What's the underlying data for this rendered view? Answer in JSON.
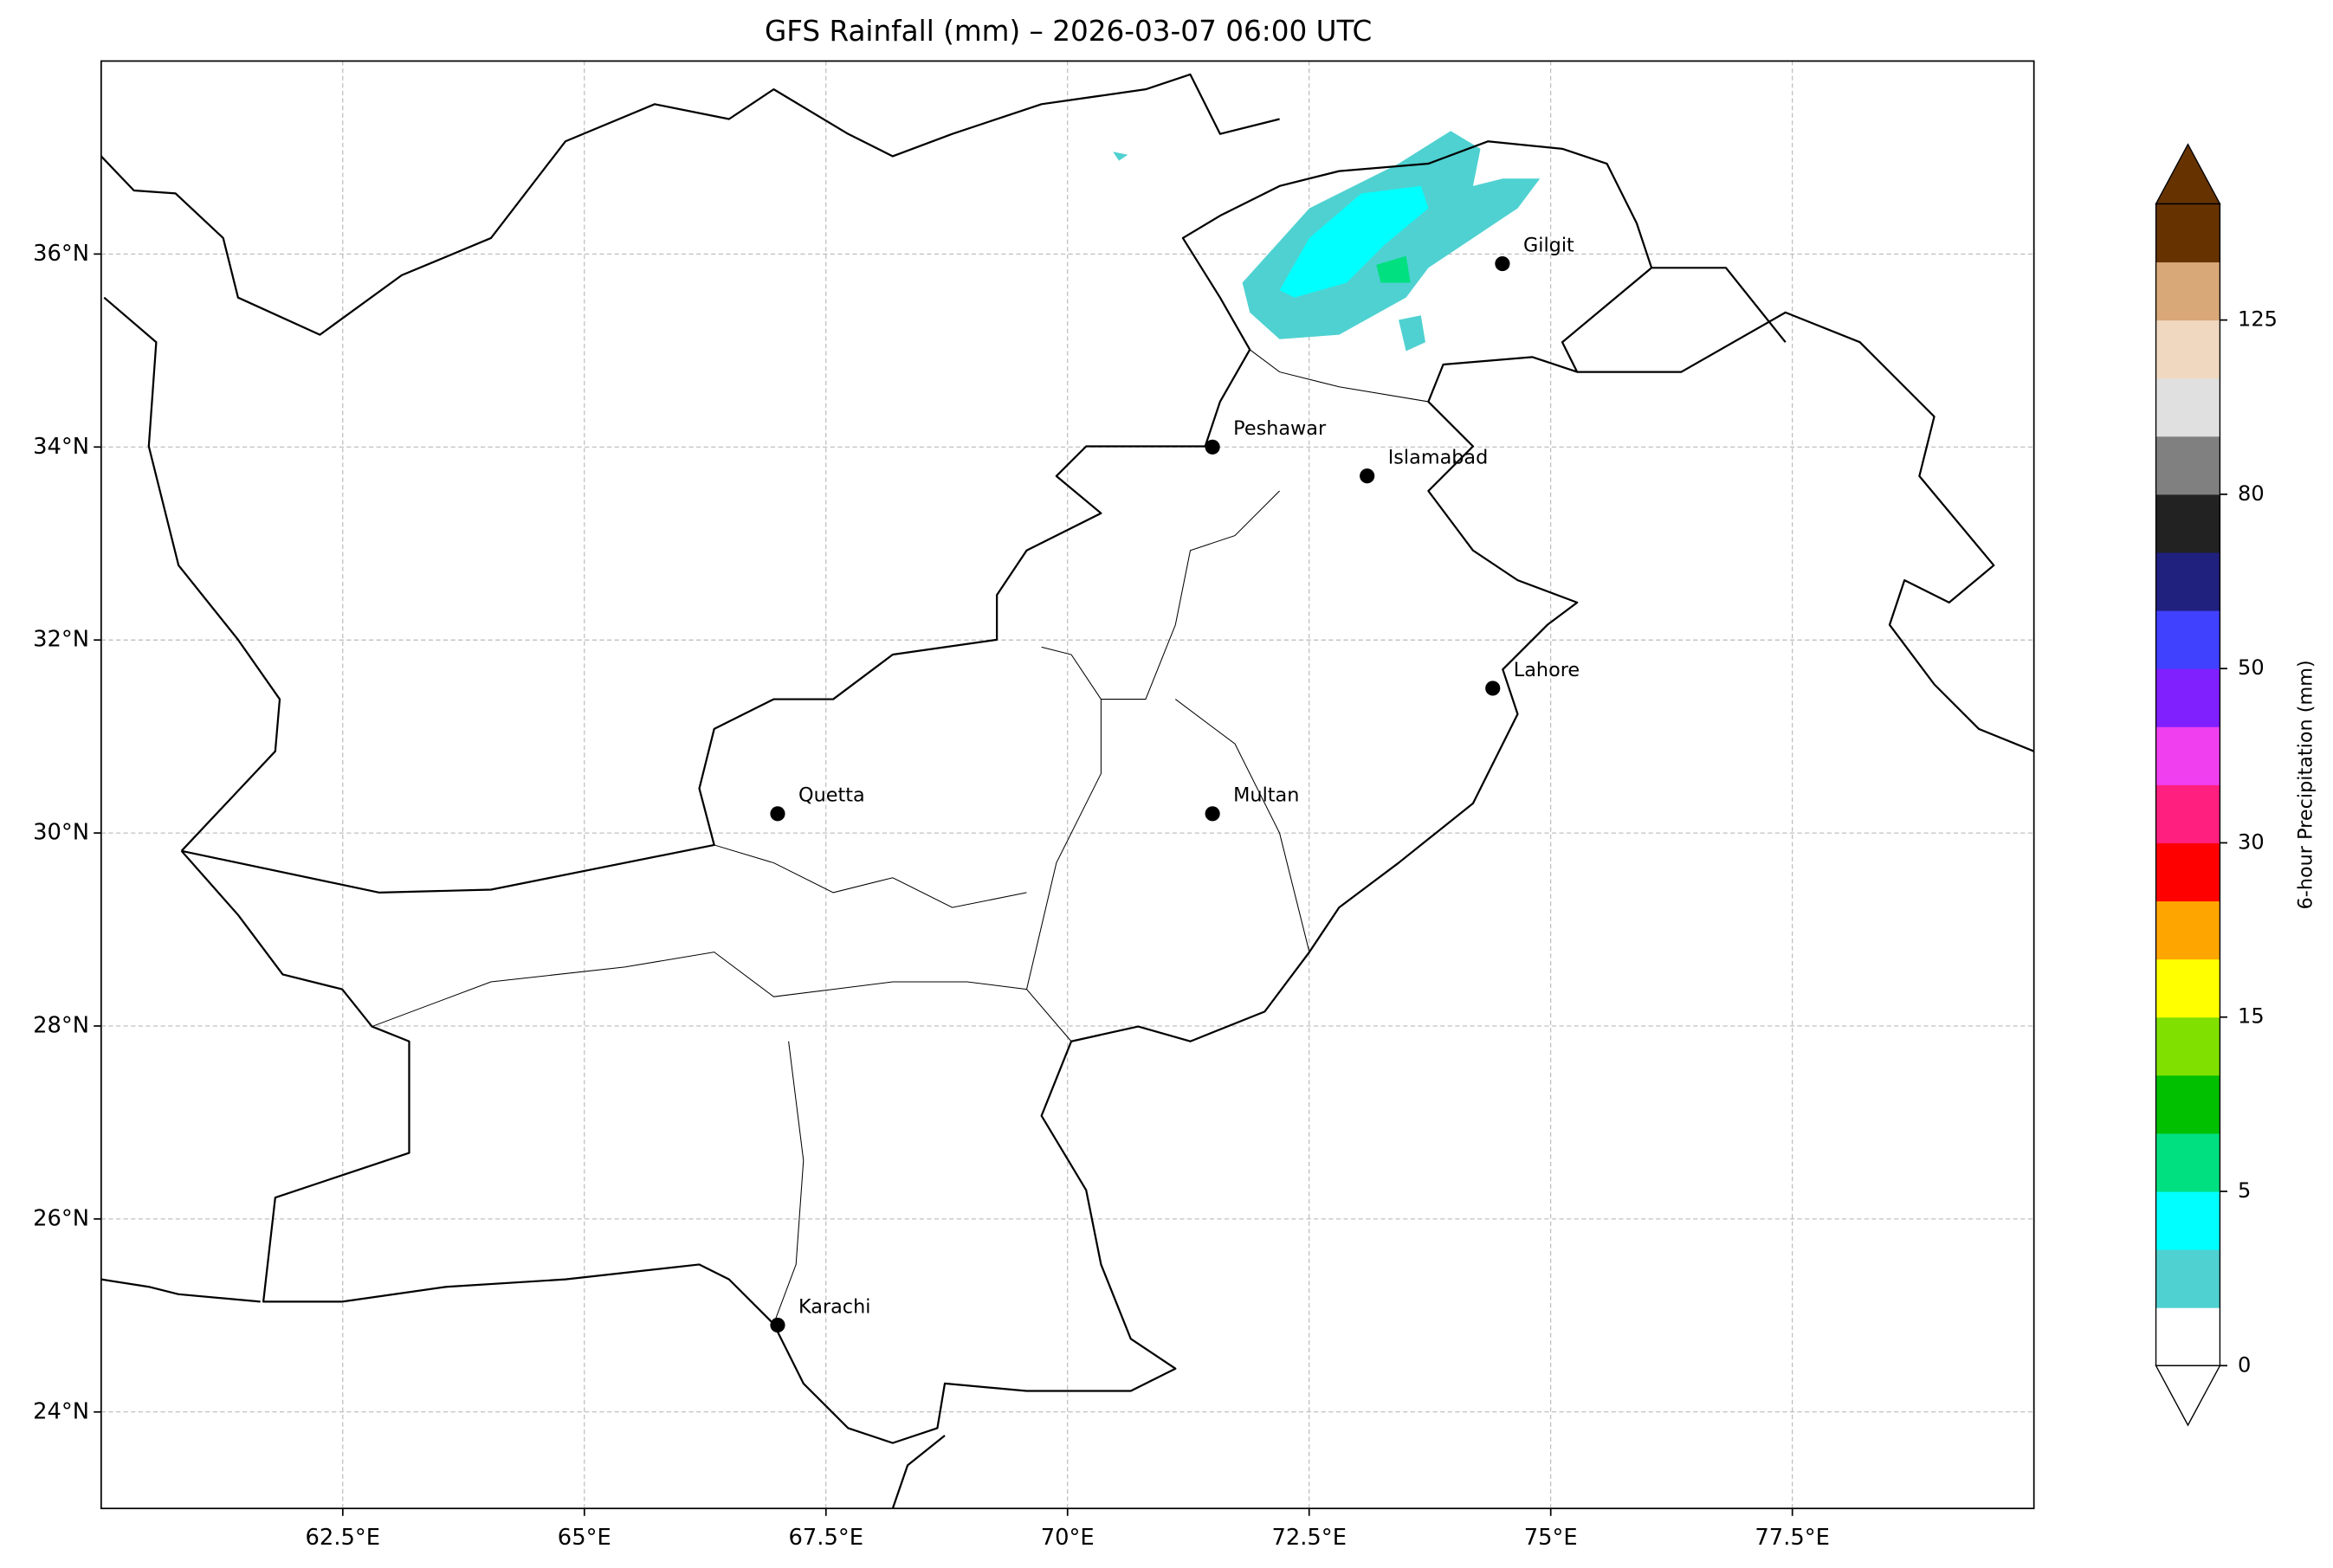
{
  "chart_data": {
    "type": "map",
    "title": "GFS Rainfall (mm) – 2026-03-07 06:00 UTC",
    "xlim": [
      60,
      80
    ],
    "ylim": [
      23,
      38
    ],
    "xticks": [
      {
        "value": 62.5,
        "label": "62.5°E"
      },
      {
        "value": 65,
        "label": "65°E"
      },
      {
        "value": 67.5,
        "label": "67.5°E"
      },
      {
        "value": 70,
        "label": "70°E"
      },
      {
        "value": 72.5,
        "label": "72.5°E"
      },
      {
        "value": 75,
        "label": "75°E"
      },
      {
        "value": 77.5,
        "label": "77.5°E"
      }
    ],
    "yticks": [
      {
        "value": 24,
        "label": "24°N"
      },
      {
        "value": 26,
        "label": "26°N"
      },
      {
        "value": 28,
        "label": "28°N"
      },
      {
        "value": 30,
        "label": "30°N"
      },
      {
        "value": 32,
        "label": "32°N"
      },
      {
        "value": 34,
        "label": "34°N"
      },
      {
        "value": 36,
        "label": "36°N"
      }
    ],
    "grid": true,
    "cities": [
      {
        "name": "Gilgit",
        "lon": 74.5,
        "lat": 35.9
      },
      {
        "name": "Peshawar",
        "lon": 71.5,
        "lat": 34.0
      },
      {
        "name": "Islamabad",
        "lon": 73.1,
        "lat": 33.7
      },
      {
        "name": "Lahore",
        "lon": 74.4,
        "lat": 31.5
      },
      {
        "name": "Quetta",
        "lon": 67.0,
        "lat": 30.2
      },
      {
        "name": "Multan",
        "lon": 71.5,
        "lat": 30.2
      },
      {
        "name": "Karachi",
        "lon": 67.0,
        "lat": 24.9
      }
    ],
    "city_color": "#000000",
    "colorbar": {
      "label": "6-hour Precipitation (mm)",
      "levels": [
        0,
        1,
        2,
        5,
        7,
        10,
        15,
        20,
        25,
        30,
        35,
        40,
        50,
        60,
        70,
        80,
        90,
        100,
        125,
        150,
        200
      ],
      "colors": [
        "#ffffff",
        "#4fd1d1",
        "#00ffff",
        "#00e080",
        "#00c000",
        "#80e000",
        "#ffff00",
        "#ffa500",
        "#ff0000",
        "#ff1f7f",
        "#ef3fef",
        "#8020ff",
        "#4040ff",
        "#20207f",
        "#222222",
        "#808080",
        "#e0e0e0",
        "#f0d8c0",
        "#d8a878",
        "#663300"
      ],
      "under_color": "#ffffff",
      "over_color": "#663300",
      "ticks": [
        0,
        5,
        15,
        30,
        50,
        80,
        125
      ]
    }
  }
}
